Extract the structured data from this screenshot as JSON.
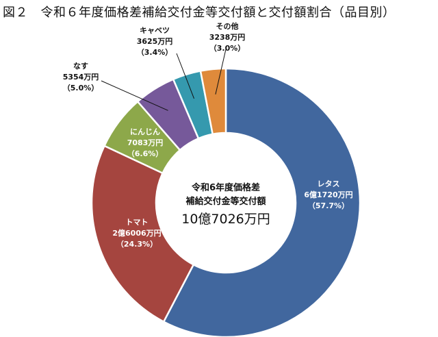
{
  "title": "図２　令和６年度価格差補給交付金等交付額と交付額割合（品目別）",
  "center": {
    "line1": "令和6年度価格差",
    "line2": "補給交付金等交付額",
    "total": "10億7026万円"
  },
  "chart_data": {
    "type": "pie",
    "donut": true,
    "start_angle_deg": 0,
    "direction": "clockwise",
    "slices": [
      {
        "name": "レタス",
        "amount": "6億1720万円",
        "value": 61720,
        "percent": 57.7,
        "percent_label": "（57.7%）",
        "color": "#41679E"
      },
      {
        "name": "トマト",
        "amount": "2億6006万円",
        "value": 26006,
        "percent": 24.3,
        "percent_label": "（24.3%）",
        "color": "#A5453F"
      },
      {
        "name": "にんじん",
        "amount": "7083万円",
        "value": 7083,
        "percent": 6.6,
        "percent_label": "（6.6%）",
        "color": "#8DA84A"
      },
      {
        "name": "なす",
        "amount": "5354万円",
        "value": 5354,
        "percent": 5.0,
        "percent_label": "（5.0%）",
        "color": "#76599A"
      },
      {
        "name": "キャベツ",
        "amount": "3625万円",
        "value": 3625,
        "percent": 3.4,
        "percent_label": "（3.4%）",
        "color": "#3599AE"
      },
      {
        "name": "その他",
        "amount": "3238万円",
        "value": 3238,
        "percent": 3.0,
        "percent_label": "（3.0%）",
        "color": "#DF8A3B"
      }
    ]
  }
}
